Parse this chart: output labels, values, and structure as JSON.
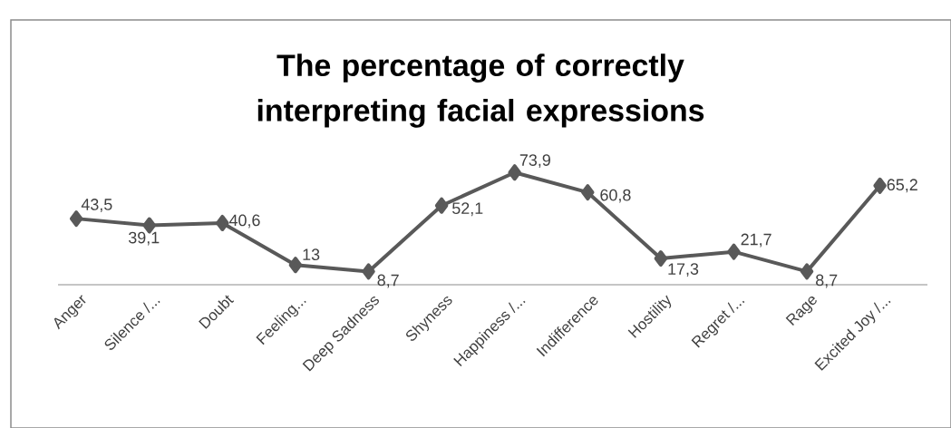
{
  "chart_data": {
    "type": "line",
    "title": "The percentage of correctly interpreting facial expressions",
    "categories": [
      "Anger",
      "Silence /...",
      "Doubt",
      "Feeling...",
      "Deep Sadness",
      "Shyness",
      "Happiness /...",
      "Indifference",
      "Hostility",
      "Regret /...",
      "Rage",
      "Excited Joy /..."
    ],
    "values": [
      43.5,
      39.1,
      40.6,
      13,
      8.7,
      52.1,
      73.9,
      60.8,
      17.3,
      21.7,
      8.7,
      65.2
    ],
    "value_labels": [
      "43,5",
      "39,1",
      "40,6",
      "13",
      "8,7",
      "52,1",
      "73,9",
      "60,8",
      "17,3",
      "21,7",
      "8,7",
      "65,2"
    ],
    "color": "#595959",
    "marker": "diamond",
    "grid": false
  }
}
